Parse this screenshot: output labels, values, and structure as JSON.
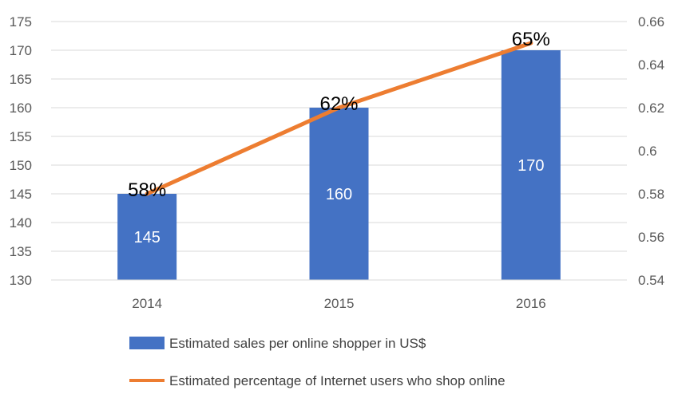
{
  "chart_data": {
    "type": "bar",
    "categories": [
      "2014",
      "2015",
      "2016"
    ],
    "series": [
      {
        "name": "Estimated sales per online shopper in US$",
        "type": "bar",
        "axis": "left",
        "values": [
          145,
          160,
          170
        ],
        "labels": [
          "145",
          "160",
          "170"
        ],
        "color": "#4472C4"
      },
      {
        "name": "Estimated percentage of Internet users who shop online",
        "type": "line",
        "axis": "right",
        "values": [
          0.58,
          0.62,
          0.65
        ],
        "labels": [
          "58%",
          "62%",
          "65%"
        ],
        "color": "#ED7D31"
      }
    ],
    "y_left": {
      "min": 130,
      "max": 175,
      "step": 5,
      "ticks": [
        "130",
        "135",
        "140",
        "145",
        "150",
        "155",
        "160",
        "165",
        "170",
        "175"
      ]
    },
    "y_right": {
      "min": 0.54,
      "max": 0.66,
      "step": 0.02,
      "ticks": [
        "0.54",
        "0.56",
        "0.58",
        "0.6",
        "0.62",
        "0.64",
        "0.66"
      ]
    },
    "grid": true,
    "legend": "bottom"
  }
}
